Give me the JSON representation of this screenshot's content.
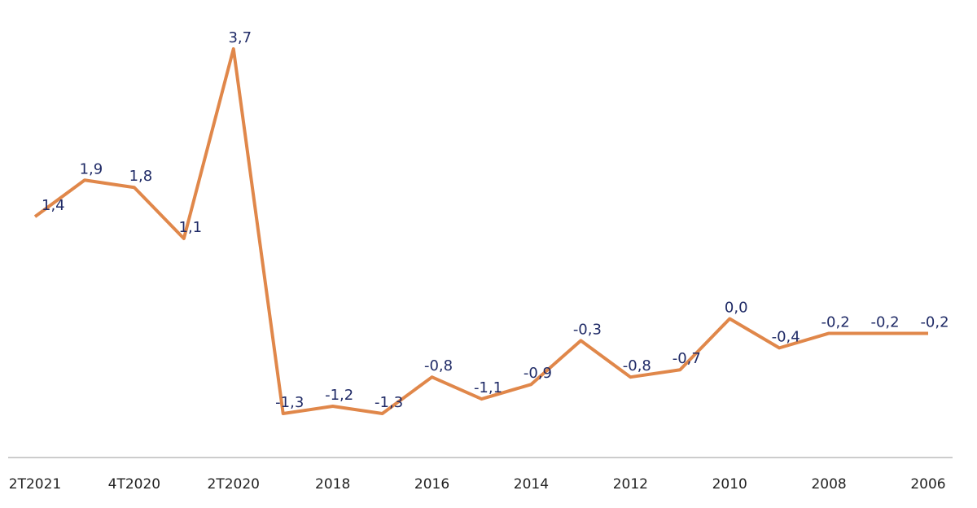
{
  "chart_data": {
    "type": "line",
    "categories": [
      "2T2021",
      null,
      "4T2020",
      null,
      "2T2020",
      null,
      "2018",
      null,
      "2016",
      null,
      "2014",
      null,
      "2012",
      null,
      "2010",
      null,
      "2008",
      null,
      "2006"
    ],
    "series": [
      {
        "color": "#e0874a",
        "values": [
          1.4,
          1.9,
          1.8,
          1.1,
          3.7,
          -1.3,
          -1.2,
          -1.3,
          -0.8,
          -1.1,
          -0.9,
          -0.3,
          -0.8,
          -0.7,
          0.0,
          -0.4,
          -0.2,
          -0.2,
          -0.2
        ],
        "value_labels": [
          "1,4",
          "1,9",
          "1,8",
          "1,1",
          "3,7",
          "-1,3",
          "-1,2",
          "-1,3",
          "-0,8",
          "-1,1",
          "-0,9",
          "-0,3",
          "-0,8",
          "-0,7",
          "0,0",
          "-0,4",
          "-0,2",
          "-0,2",
          "-0,2"
        ]
      }
    ]
  }
}
